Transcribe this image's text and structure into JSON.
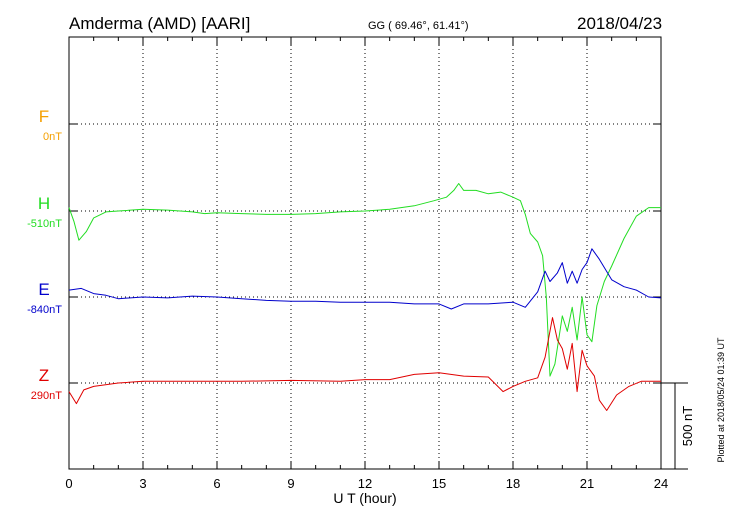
{
  "header": {
    "station": "Amderma (AMD)  [AARI]",
    "coords": "GG ( 69.46°,  61.41°)",
    "date": "2018/04/23"
  },
  "side_note": "Plotted at 2018/05/24 01:39 UT",
  "scale_label": "500 nT",
  "chart_data": {
    "type": "line",
    "xlabel": "U T (hour)",
    "xlim": [
      0,
      24
    ],
    "x_ticks": [
      "0",
      "3",
      "6",
      "9",
      "12",
      "15",
      "18",
      "21",
      "24"
    ],
    "scale_bar_nT": 500,
    "grid": true,
    "series": [
      {
        "name": "F",
        "baseline": "0nT",
        "color": "#f5a000",
        "points": []
      },
      {
        "name": "H",
        "baseline": "-510nT",
        "color": "#22dd22",
        "points": [
          [
            0,
            20
          ],
          [
            0.2,
            -60
          ],
          [
            0.4,
            -170
          ],
          [
            0.7,
            -120
          ],
          [
            1,
            -40
          ],
          [
            1.5,
            -5
          ],
          [
            2,
            0
          ],
          [
            3,
            10
          ],
          [
            4,
            5
          ],
          [
            5,
            -5
          ],
          [
            5.5,
            -15
          ],
          [
            6,
            -10
          ],
          [
            7,
            -15
          ],
          [
            8,
            -20
          ],
          [
            9,
            -20
          ],
          [
            10,
            -15
          ],
          [
            11,
            -5
          ],
          [
            12,
            0
          ],
          [
            13,
            10
          ],
          [
            14,
            30
          ],
          [
            14.8,
            60
          ],
          [
            15.3,
            80
          ],
          [
            15.6,
            120
          ],
          [
            15.8,
            160
          ],
          [
            16,
            120
          ],
          [
            16.5,
            120
          ],
          [
            17,
            100
          ],
          [
            17.5,
            110
          ],
          [
            18,
            80
          ],
          [
            18.3,
            60
          ],
          [
            18.5,
            -20
          ],
          [
            18.7,
            -130
          ],
          [
            19,
            -180
          ],
          [
            19.2,
            -260
          ],
          [
            19.35,
            -500
          ],
          [
            19.5,
            -960
          ],
          [
            19.7,
            -890
          ],
          [
            20,
            -610
          ],
          [
            20.2,
            -700
          ],
          [
            20.4,
            -560
          ],
          [
            20.6,
            -750
          ],
          [
            20.8,
            -500
          ],
          [
            21,
            -720
          ],
          [
            21.2,
            -760
          ],
          [
            21.4,
            -550
          ],
          [
            21.7,
            -410
          ],
          [
            22,
            -320
          ],
          [
            22.5,
            -160
          ],
          [
            23,
            -30
          ],
          [
            23.5,
            20
          ],
          [
            24,
            20
          ]
        ]
      },
      {
        "name": "E",
        "baseline": "-840nT",
        "color": "#0000cc",
        "points": [
          [
            0,
            40
          ],
          [
            0.5,
            50
          ],
          [
            1,
            20
          ],
          [
            1.5,
            10
          ],
          [
            2,
            -10
          ],
          [
            3,
            0
          ],
          [
            4,
            -5
          ],
          [
            5,
            5
          ],
          [
            6,
            0
          ],
          [
            7,
            -10
          ],
          [
            8,
            -20
          ],
          [
            9,
            -25
          ],
          [
            10,
            -25
          ],
          [
            11,
            -30
          ],
          [
            12,
            -30
          ],
          [
            13,
            -30
          ],
          [
            14,
            -40
          ],
          [
            15,
            -40
          ],
          [
            15.5,
            -70
          ],
          [
            16,
            -40
          ],
          [
            17,
            -40
          ],
          [
            18,
            -30
          ],
          [
            18.5,
            -60
          ],
          [
            19,
            30
          ],
          [
            19.3,
            150
          ],
          [
            19.5,
            90
          ],
          [
            19.8,
            140
          ],
          [
            20,
            200
          ],
          [
            20.2,
            80
          ],
          [
            20.4,
            150
          ],
          [
            20.6,
            80
          ],
          [
            20.8,
            160
          ],
          [
            21,
            200
          ],
          [
            21.2,
            280
          ],
          [
            21.5,
            220
          ],
          [
            22,
            100
          ],
          [
            22.5,
            60
          ],
          [
            23,
            40
          ],
          [
            23.5,
            0
          ],
          [
            24,
            -5
          ]
        ]
      },
      {
        "name": "Z",
        "baseline": "290nT",
        "color": "#e00000",
        "points": [
          [
            0,
            -50
          ],
          [
            0.3,
            -120
          ],
          [
            0.6,
            -40
          ],
          [
            1,
            -20
          ],
          [
            2,
            0
          ],
          [
            3,
            10
          ],
          [
            5,
            10
          ],
          [
            7,
            10
          ],
          [
            9,
            15
          ],
          [
            11,
            10
          ],
          [
            12,
            20
          ],
          [
            13,
            20
          ],
          [
            14,
            50
          ],
          [
            15,
            60
          ],
          [
            16,
            40
          ],
          [
            17,
            35
          ],
          [
            17.6,
            -50
          ],
          [
            18,
            -20
          ],
          [
            18.5,
            10
          ],
          [
            19,
            30
          ],
          [
            19.3,
            150
          ],
          [
            19.6,
            380
          ],
          [
            19.8,
            250
          ],
          [
            20,
            200
          ],
          [
            20.2,
            80
          ],
          [
            20.4,
            230
          ],
          [
            20.6,
            -50
          ],
          [
            20.8,
            190
          ],
          [
            21,
            100
          ],
          [
            21.3,
            40
          ],
          [
            21.5,
            -100
          ],
          [
            21.8,
            -160
          ],
          [
            22.2,
            -70
          ],
          [
            22.7,
            -20
          ],
          [
            23.2,
            10
          ],
          [
            24,
            10
          ]
        ]
      }
    ]
  }
}
